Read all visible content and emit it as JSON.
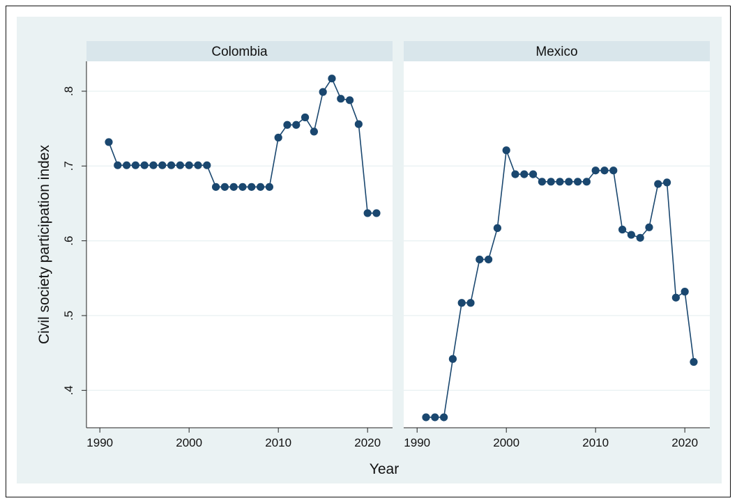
{
  "chart_data": {
    "type": "line",
    "panels": [
      {
        "name": "Colombia",
        "x": [
          1991,
          1992,
          1993,
          1994,
          1995,
          1996,
          1997,
          1998,
          1999,
          2000,
          2001,
          2002,
          2003,
          2004,
          2005,
          2006,
          2007,
          2008,
          2009,
          2010,
          2011,
          2012,
          2013,
          2014,
          2015,
          2016,
          2017,
          2018,
          2019,
          2020,
          2021
        ],
        "y": [
          0.732,
          0.701,
          0.701,
          0.701,
          0.701,
          0.701,
          0.701,
          0.701,
          0.701,
          0.701,
          0.701,
          0.701,
          0.672,
          0.672,
          0.672,
          0.672,
          0.672,
          0.672,
          0.672,
          0.738,
          0.755,
          0.755,
          0.765,
          0.746,
          0.799,
          0.817,
          0.79,
          0.788,
          0.756,
          0.637,
          0.637
        ]
      },
      {
        "name": "Mexico",
        "x": [
          1991,
          1992,
          1993,
          1994,
          1995,
          1996,
          1997,
          1998,
          1999,
          2000,
          2001,
          2002,
          2003,
          2004,
          2005,
          2006,
          2007,
          2008,
          2009,
          2010,
          2011,
          2012,
          2013,
          2014,
          2015,
          2016,
          2017,
          2018,
          2019,
          2020,
          2021
        ],
        "y": [
          0.364,
          0.364,
          0.364,
          0.442,
          0.517,
          0.517,
          0.575,
          0.575,
          0.617,
          0.721,
          0.689,
          0.689,
          0.689,
          0.679,
          0.679,
          0.679,
          0.679,
          0.679,
          0.679,
          0.694,
          0.694,
          0.694,
          0.615,
          0.608,
          0.604,
          0.618,
          0.676,
          0.678,
          0.524,
          0.532,
          0.438
        ]
      }
    ],
    "xlabel": "Year",
    "ylabel": "Civil society participation index",
    "xlim": [
      1988.5,
      2022.8
    ],
    "ylim": [
      0.35,
      0.84
    ],
    "xticks": [
      1990,
      2000,
      2010,
      2020
    ],
    "xtick_labels": [
      "1990",
      "2000",
      "2010",
      "2020"
    ],
    "yticks": [
      0.4,
      0.5,
      0.6,
      0.7,
      0.8
    ],
    "ytick_labels": [
      ".4",
      ".5",
      ".6",
      ".7",
      ".8"
    ],
    "grid": true,
    "colors": {
      "outer_bg": "#eaf2f3",
      "strip_bg": "#d9e6eb",
      "plot_bg": "#ffffff",
      "grid": "#eaf2f3",
      "series": "#1a476f"
    }
  }
}
